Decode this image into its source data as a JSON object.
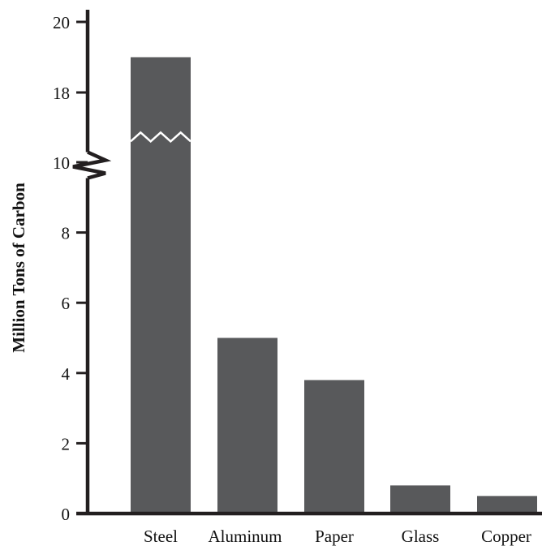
{
  "chart_data": {
    "type": "bar",
    "title": "",
    "xlabel": "",
    "ylabel": "Million Tons of Carbon",
    "categories": [
      "Steel",
      "Aluminum",
      "Paper",
      "Glass",
      "Copper"
    ],
    "values": [
      19.0,
      5.0,
      3.8,
      0.8,
      0.5
    ],
    "ylim": [
      0,
      20
    ],
    "axis_break": {
      "from": 10.5,
      "to": 17
    },
    "y_ticks_lower": [
      "0",
      "2",
      "4",
      "6",
      "8",
      "10"
    ],
    "y_ticks_upper": [
      "18",
      "20"
    ],
    "grid": false,
    "legend": "none",
    "bar_color": "#58595b",
    "axis_color": "#231f20"
  }
}
